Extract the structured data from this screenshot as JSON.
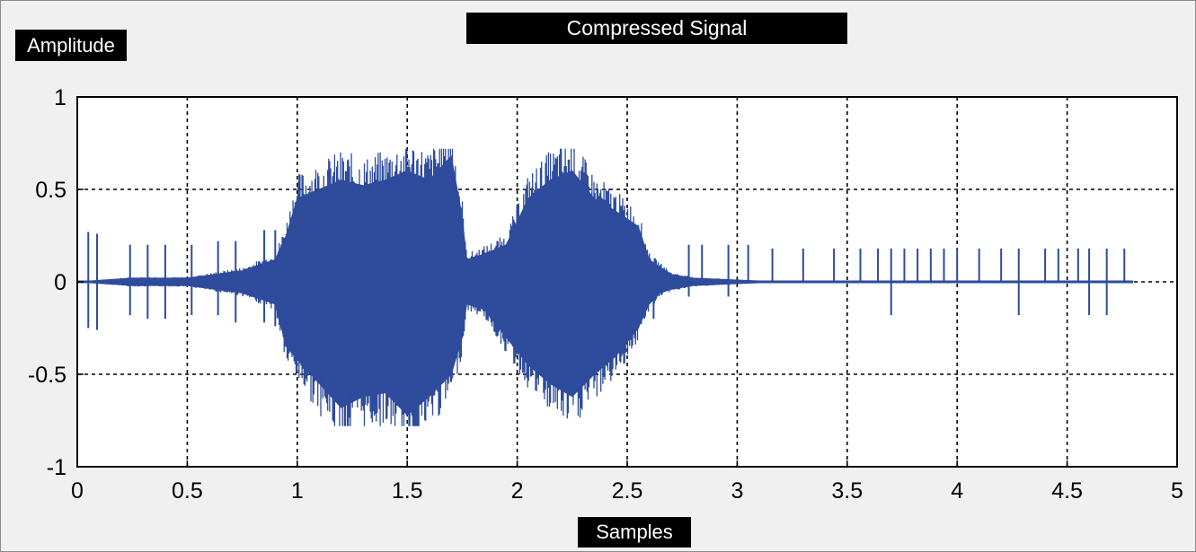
{
  "chart_data": {
    "type": "line",
    "title": "Compressed Signal",
    "xlabel": "Samples",
    "ylabel": "Amplitude",
    "xlim": [
      0,
      5
    ],
    "ylim": [
      -1,
      1
    ],
    "x_ticks": [
      "0",
      "0.5",
      "1",
      "1.5",
      "2",
      "2.5",
      "3",
      "3.5",
      "4",
      "4.5",
      "5"
    ],
    "y_ticks": [
      "1",
      "0.5",
      "0",
      "-0.5",
      "-1"
    ],
    "grid": true,
    "series": [
      {
        "color": "#2e4b9c",
        "envelope_x": [
          0.0,
          0.25,
          0.5,
          0.75,
          0.9,
          0.95,
          1.0,
          1.1,
          1.2,
          1.3,
          1.4,
          1.5,
          1.6,
          1.7,
          1.75,
          1.77,
          1.85,
          1.95,
          2.05,
          2.15,
          2.25,
          2.35,
          2.45,
          2.55,
          2.6,
          2.65,
          2.7,
          2.8,
          3.0,
          3.2,
          4.8
        ],
        "envelope_upper": [
          0.0,
          0.02,
          0.02,
          0.06,
          0.12,
          0.25,
          0.45,
          0.5,
          0.55,
          0.52,
          0.55,
          0.6,
          0.55,
          0.68,
          0.35,
          0.12,
          0.15,
          0.2,
          0.45,
          0.55,
          0.6,
          0.45,
          0.38,
          0.3,
          0.12,
          0.08,
          0.04,
          0.02,
          0.01,
          0.0,
          0.0
        ],
        "envelope_lower": [
          0.0,
          -0.02,
          -0.02,
          -0.06,
          -0.12,
          -0.35,
          -0.42,
          -0.55,
          -0.68,
          -0.62,
          -0.6,
          -0.72,
          -0.62,
          -0.5,
          -0.3,
          -0.12,
          -0.15,
          -0.3,
          -0.45,
          -0.55,
          -0.62,
          -0.5,
          -0.4,
          -0.25,
          -0.12,
          -0.06,
          -0.04,
          -0.02,
          -0.01,
          0.0,
          0.0
        ],
        "spikes": [
          {
            "x": 0.05,
            "y": 0.27
          },
          {
            "x": 0.05,
            "y": -0.25
          },
          {
            "x": 0.09,
            "y": 0.26
          },
          {
            "x": 0.09,
            "y": -0.26
          },
          {
            "x": 0.24,
            "y": 0.2
          },
          {
            "x": 0.24,
            "y": -0.18
          },
          {
            "x": 0.32,
            "y": 0.2
          },
          {
            "x": 0.32,
            "y": -0.2
          },
          {
            "x": 0.4,
            "y": 0.2
          },
          {
            "x": 0.4,
            "y": -0.2
          },
          {
            "x": 0.52,
            "y": 0.2
          },
          {
            "x": 0.52,
            "y": -0.18
          },
          {
            "x": 0.64,
            "y": 0.22
          },
          {
            "x": 0.64,
            "y": -0.18
          },
          {
            "x": 0.72,
            "y": 0.22
          },
          {
            "x": 0.72,
            "y": -0.22
          },
          {
            "x": 0.85,
            "y": 0.28
          },
          {
            "x": 0.85,
            "y": -0.22
          },
          {
            "x": 0.9,
            "y": 0.28
          },
          {
            "x": 0.9,
            "y": -0.24
          },
          {
            "x": 2.62,
            "y": 0.1
          },
          {
            "x": 2.62,
            "y": -0.2
          },
          {
            "x": 2.78,
            "y": 0.2
          },
          {
            "x": 2.78,
            "y": -0.08
          },
          {
            "x": 2.84,
            "y": 0.2
          },
          {
            "x": 2.96,
            "y": 0.2
          },
          {
            "x": 2.96,
            "y": -0.08
          },
          {
            "x": 3.05,
            "y": 0.2
          },
          {
            "x": 3.16,
            "y": 0.18
          },
          {
            "x": 3.3,
            "y": 0.18
          },
          {
            "x": 3.44,
            "y": 0.18
          },
          {
            "x": 3.56,
            "y": 0.18
          },
          {
            "x": 3.64,
            "y": 0.18
          },
          {
            "x": 3.7,
            "y": 0.18
          },
          {
            "x": 3.7,
            "y": -0.18
          },
          {
            "x": 3.76,
            "y": 0.18
          },
          {
            "x": 3.82,
            "y": 0.18
          },
          {
            "x": 3.88,
            "y": 0.18
          },
          {
            "x": 3.94,
            "y": 0.18
          },
          {
            "x": 4.0,
            "y": 0.18
          },
          {
            "x": 4.1,
            "y": 0.18
          },
          {
            "x": 4.2,
            "y": 0.18
          },
          {
            "x": 4.28,
            "y": 0.18
          },
          {
            "x": 4.28,
            "y": -0.18
          },
          {
            "x": 4.4,
            "y": 0.18
          },
          {
            "x": 4.46,
            "y": 0.18
          },
          {
            "x": 4.55,
            "y": 0.18
          },
          {
            "x": 4.6,
            "y": 0.18
          },
          {
            "x": 4.6,
            "y": -0.18
          },
          {
            "x": 4.68,
            "y": 0.18
          },
          {
            "x": 4.68,
            "y": -0.18
          },
          {
            "x": 4.76,
            "y": 0.18
          }
        ]
      }
    ]
  }
}
